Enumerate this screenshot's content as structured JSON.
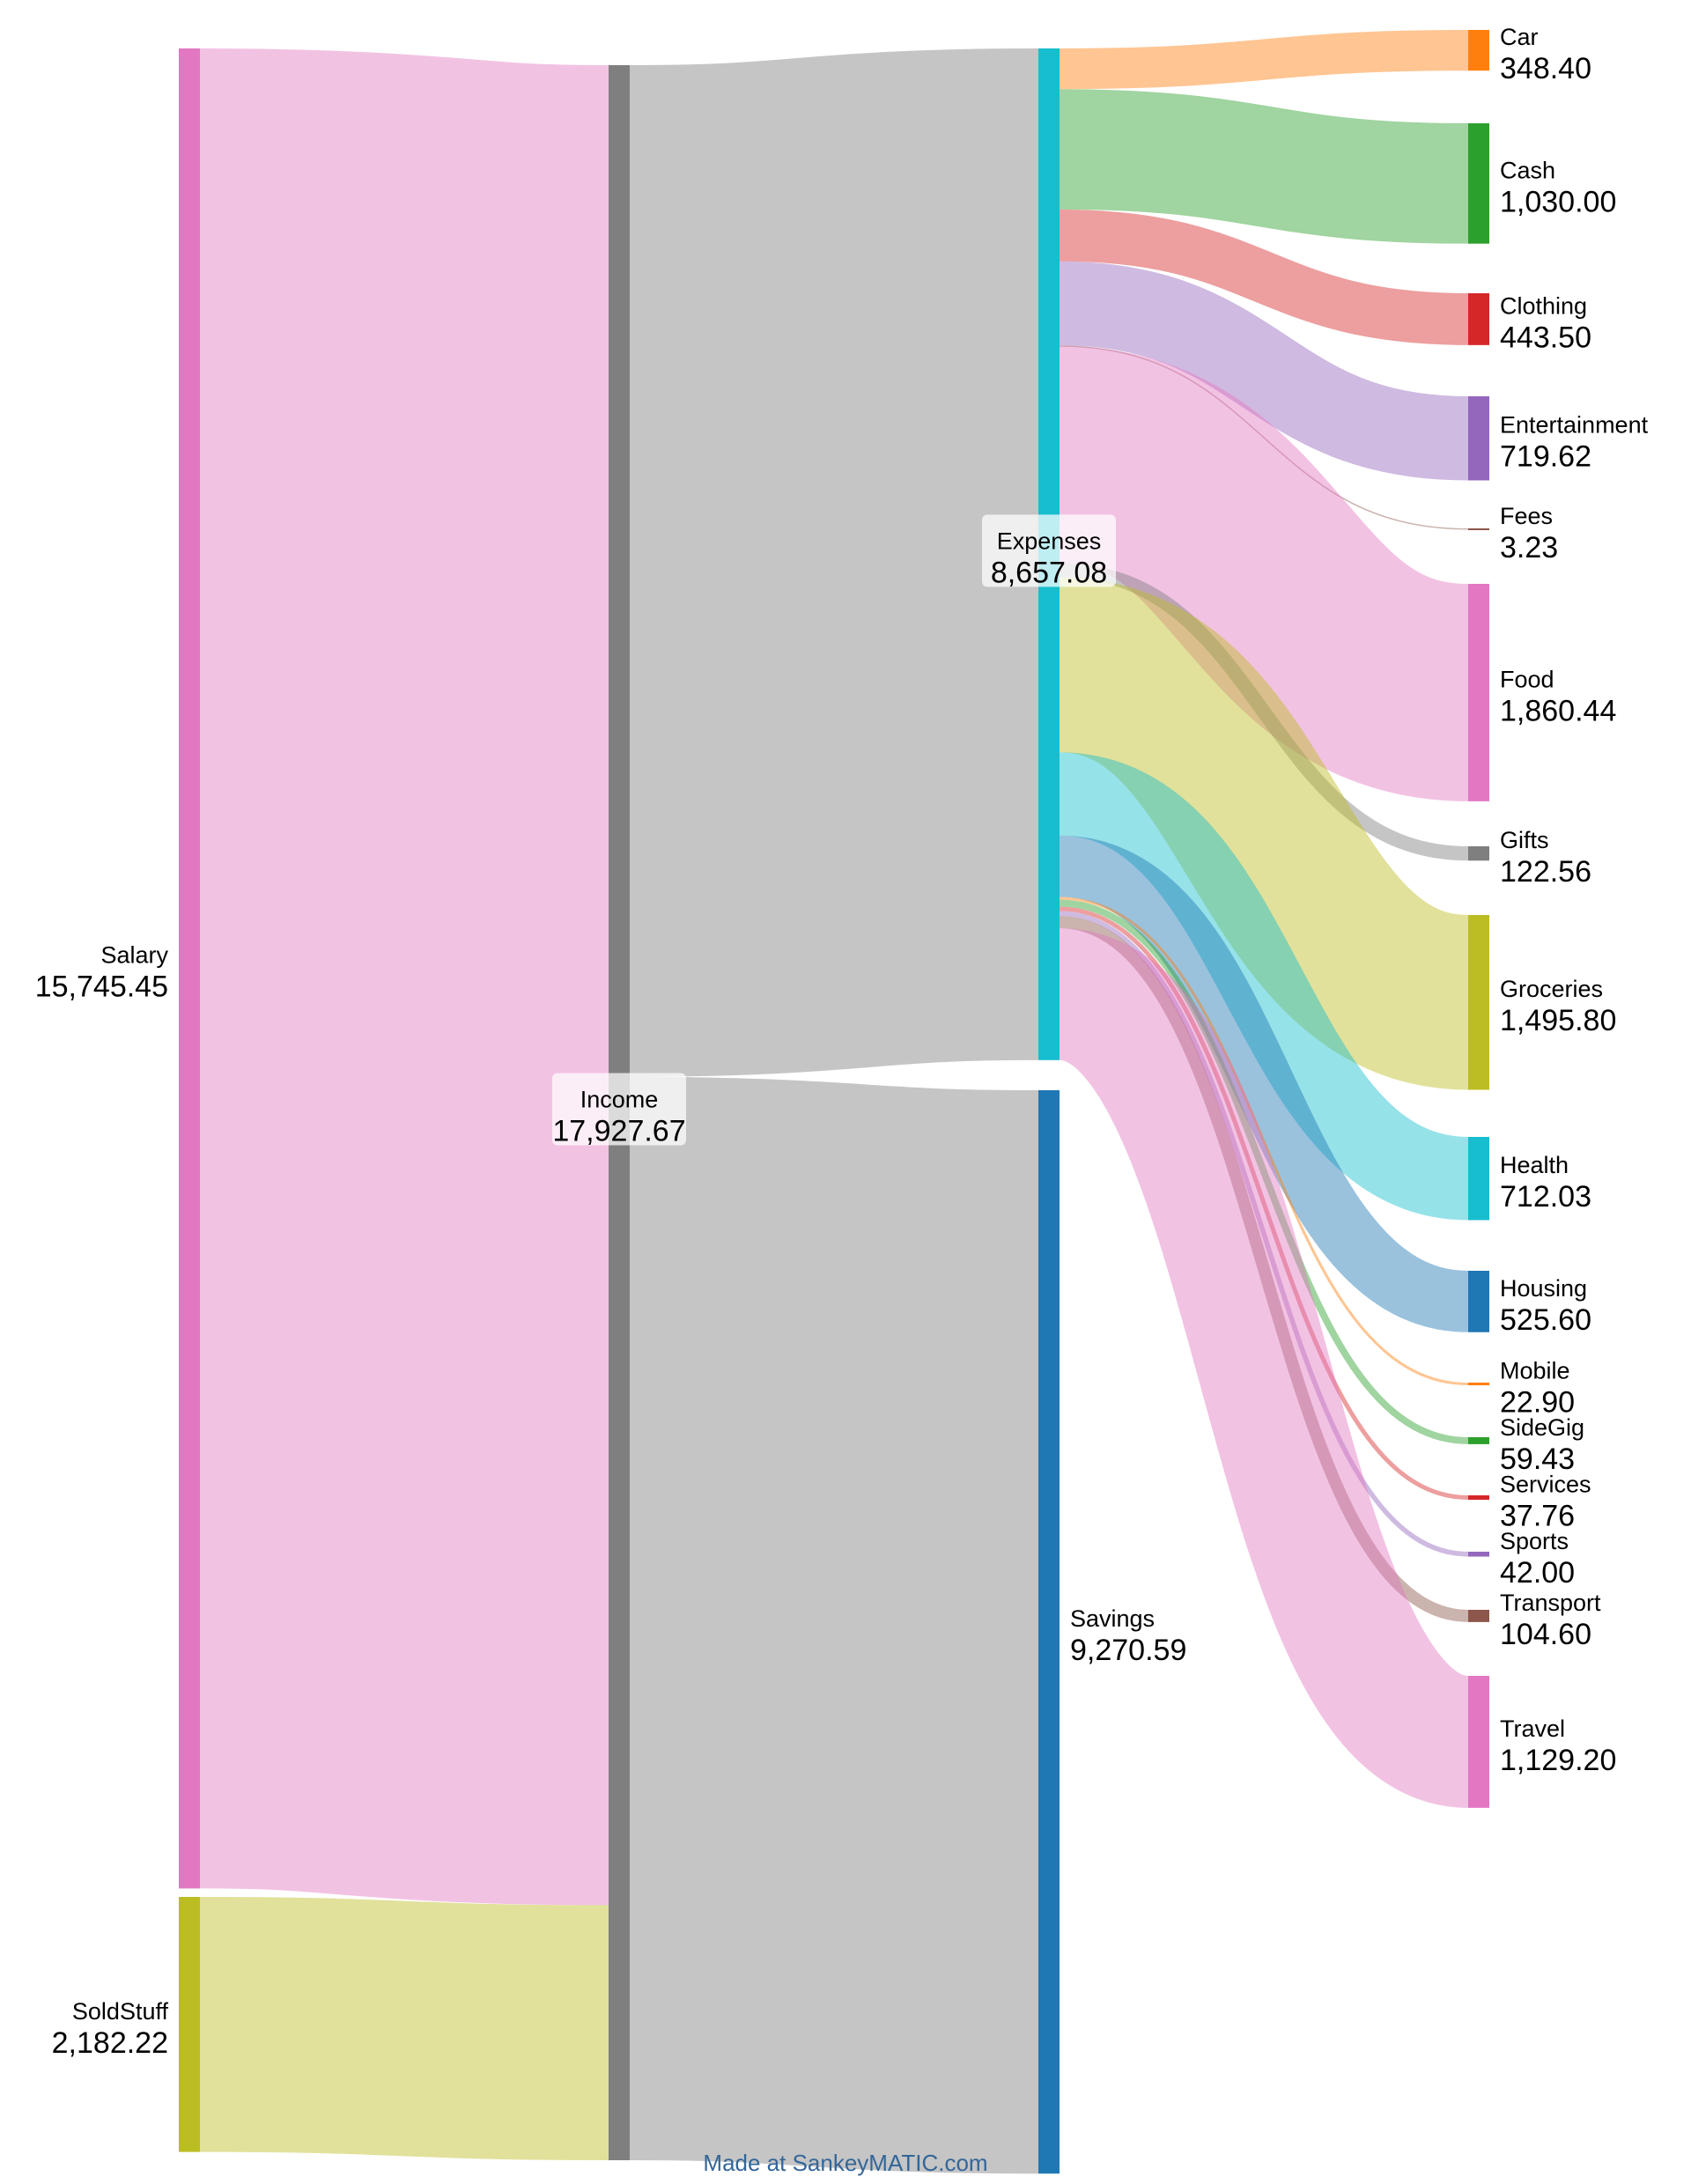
{
  "chart_data": {
    "type": "sankey",
    "nodes": [
      {
        "id": "salary",
        "name": "Salary",
        "value": "15,745.45",
        "color": "#e377c2"
      },
      {
        "id": "soldstuff",
        "name": "SoldStuff",
        "value": "2,182.22",
        "color": "#bcbd22"
      },
      {
        "id": "income",
        "name": "Income",
        "value": "17,927.67",
        "color": "#7f7f7f"
      },
      {
        "id": "expenses",
        "name": "Expenses",
        "value": "8,657.08",
        "color": "#17becf"
      },
      {
        "id": "savings",
        "name": "Savings",
        "value": "9,270.59",
        "color": "#1f77b4"
      },
      {
        "id": "car",
        "name": "Car",
        "value": "348.40",
        "color": "#ff7f0e"
      },
      {
        "id": "cash",
        "name": "Cash",
        "value": "1,030.00",
        "color": "#2ca02c"
      },
      {
        "id": "clothing",
        "name": "Clothing",
        "value": "443.50",
        "color": "#d62728"
      },
      {
        "id": "entertainment",
        "name": "Entertainment",
        "value": "719.62",
        "color": "#9467bd"
      },
      {
        "id": "fees",
        "name": "Fees",
        "value": "3.23",
        "color": "#8c564b"
      },
      {
        "id": "food",
        "name": "Food",
        "value": "1,860.44",
        "color": "#e377c2"
      },
      {
        "id": "gifts",
        "name": "Gifts",
        "value": "122.56",
        "color": "#7f7f7f"
      },
      {
        "id": "groceries",
        "name": "Groceries",
        "value": "1,495.80",
        "color": "#bcbd22"
      },
      {
        "id": "health",
        "name": "Health",
        "value": "712.03",
        "color": "#17becf"
      },
      {
        "id": "housing",
        "name": "Housing",
        "value": "525.60",
        "color": "#1f77b4"
      },
      {
        "id": "mobile",
        "name": "Mobile",
        "value": "22.90",
        "color": "#ff7f0e"
      },
      {
        "id": "sidegig",
        "name": "SideGig",
        "value": "59.43",
        "color": "#2ca02c"
      },
      {
        "id": "services",
        "name": "Services",
        "value": "37.76",
        "color": "#d62728"
      },
      {
        "id": "sports",
        "name": "Sports",
        "value": "42.00",
        "color": "#9467bd"
      },
      {
        "id": "transport",
        "name": "Transport",
        "value": "104.60",
        "color": "#8c564b"
      },
      {
        "id": "travel",
        "name": "Travel",
        "value": "1,129.20",
        "color": "#e377c2"
      }
    ],
    "links": [
      {
        "source": "salary",
        "target": "income",
        "value": 15745.45
      },
      {
        "source": "soldstuff",
        "target": "income",
        "value": 2182.22
      },
      {
        "source": "income",
        "target": "expenses",
        "value": 8657.08
      },
      {
        "source": "income",
        "target": "savings",
        "value": 9270.59
      },
      {
        "source": "expenses",
        "target": "car",
        "value": 348.4
      },
      {
        "source": "expenses",
        "target": "cash",
        "value": 1030.0
      },
      {
        "source": "expenses",
        "target": "clothing",
        "value": 443.5
      },
      {
        "source": "expenses",
        "target": "entertainment",
        "value": 719.62
      },
      {
        "source": "expenses",
        "target": "fees",
        "value": 3.23
      },
      {
        "source": "expenses",
        "target": "food",
        "value": 1860.44
      },
      {
        "source": "expenses",
        "target": "gifts",
        "value": 122.56
      },
      {
        "source": "expenses",
        "target": "groceries",
        "value": 1495.8
      },
      {
        "source": "expenses",
        "target": "health",
        "value": 712.03
      },
      {
        "source": "expenses",
        "target": "housing",
        "value": 525.6
      },
      {
        "source": "expenses",
        "target": "mobile",
        "value": 22.9
      },
      {
        "source": "expenses",
        "target": "sidegig",
        "value": 59.43
      },
      {
        "source": "expenses",
        "target": "services",
        "value": 37.76
      },
      {
        "source": "expenses",
        "target": "sports",
        "value": 42.0
      },
      {
        "source": "expenses",
        "target": "transport",
        "value": 104.6
      },
      {
        "source": "expenses",
        "target": "travel",
        "value": 1129.2
      }
    ]
  },
  "footer": {
    "credit": "Made at SankeyMATIC.com"
  }
}
